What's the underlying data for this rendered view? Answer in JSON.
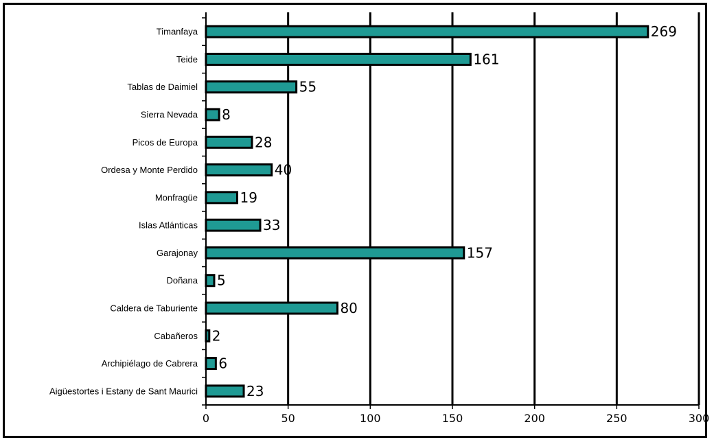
{
  "chart_data": {
    "type": "bar",
    "orientation": "horizontal",
    "title": "",
    "xlabel": "",
    "ylabel": "",
    "categories": [
      "Timanfaya",
      "Teide",
      "Tablas de Daimiel",
      "Sierra Nevada",
      "Picos de Europa",
      "Ordesa y Monte Perdido",
      "Monfragüe",
      "Islas Atlánticas",
      "Garajonay",
      "Doñana",
      "Caldera de Taburiente",
      "Cabañeros",
      "Archipiélago de Cabrera",
      "Aigüestortes i Estany de Sant Maurici"
    ],
    "values": [
      269,
      161,
      55,
      8,
      28,
      40,
      19,
      33,
      157,
      5,
      80,
      2,
      6,
      23
    ],
    "xlim": [
      0,
      300
    ],
    "xticks": [
      0,
      50,
      100,
      150,
      200,
      250,
      300
    ],
    "grid": "vertical",
    "legend": "none",
    "bar_color": "#1f9a94",
    "bar_border_color": "#000000"
  }
}
